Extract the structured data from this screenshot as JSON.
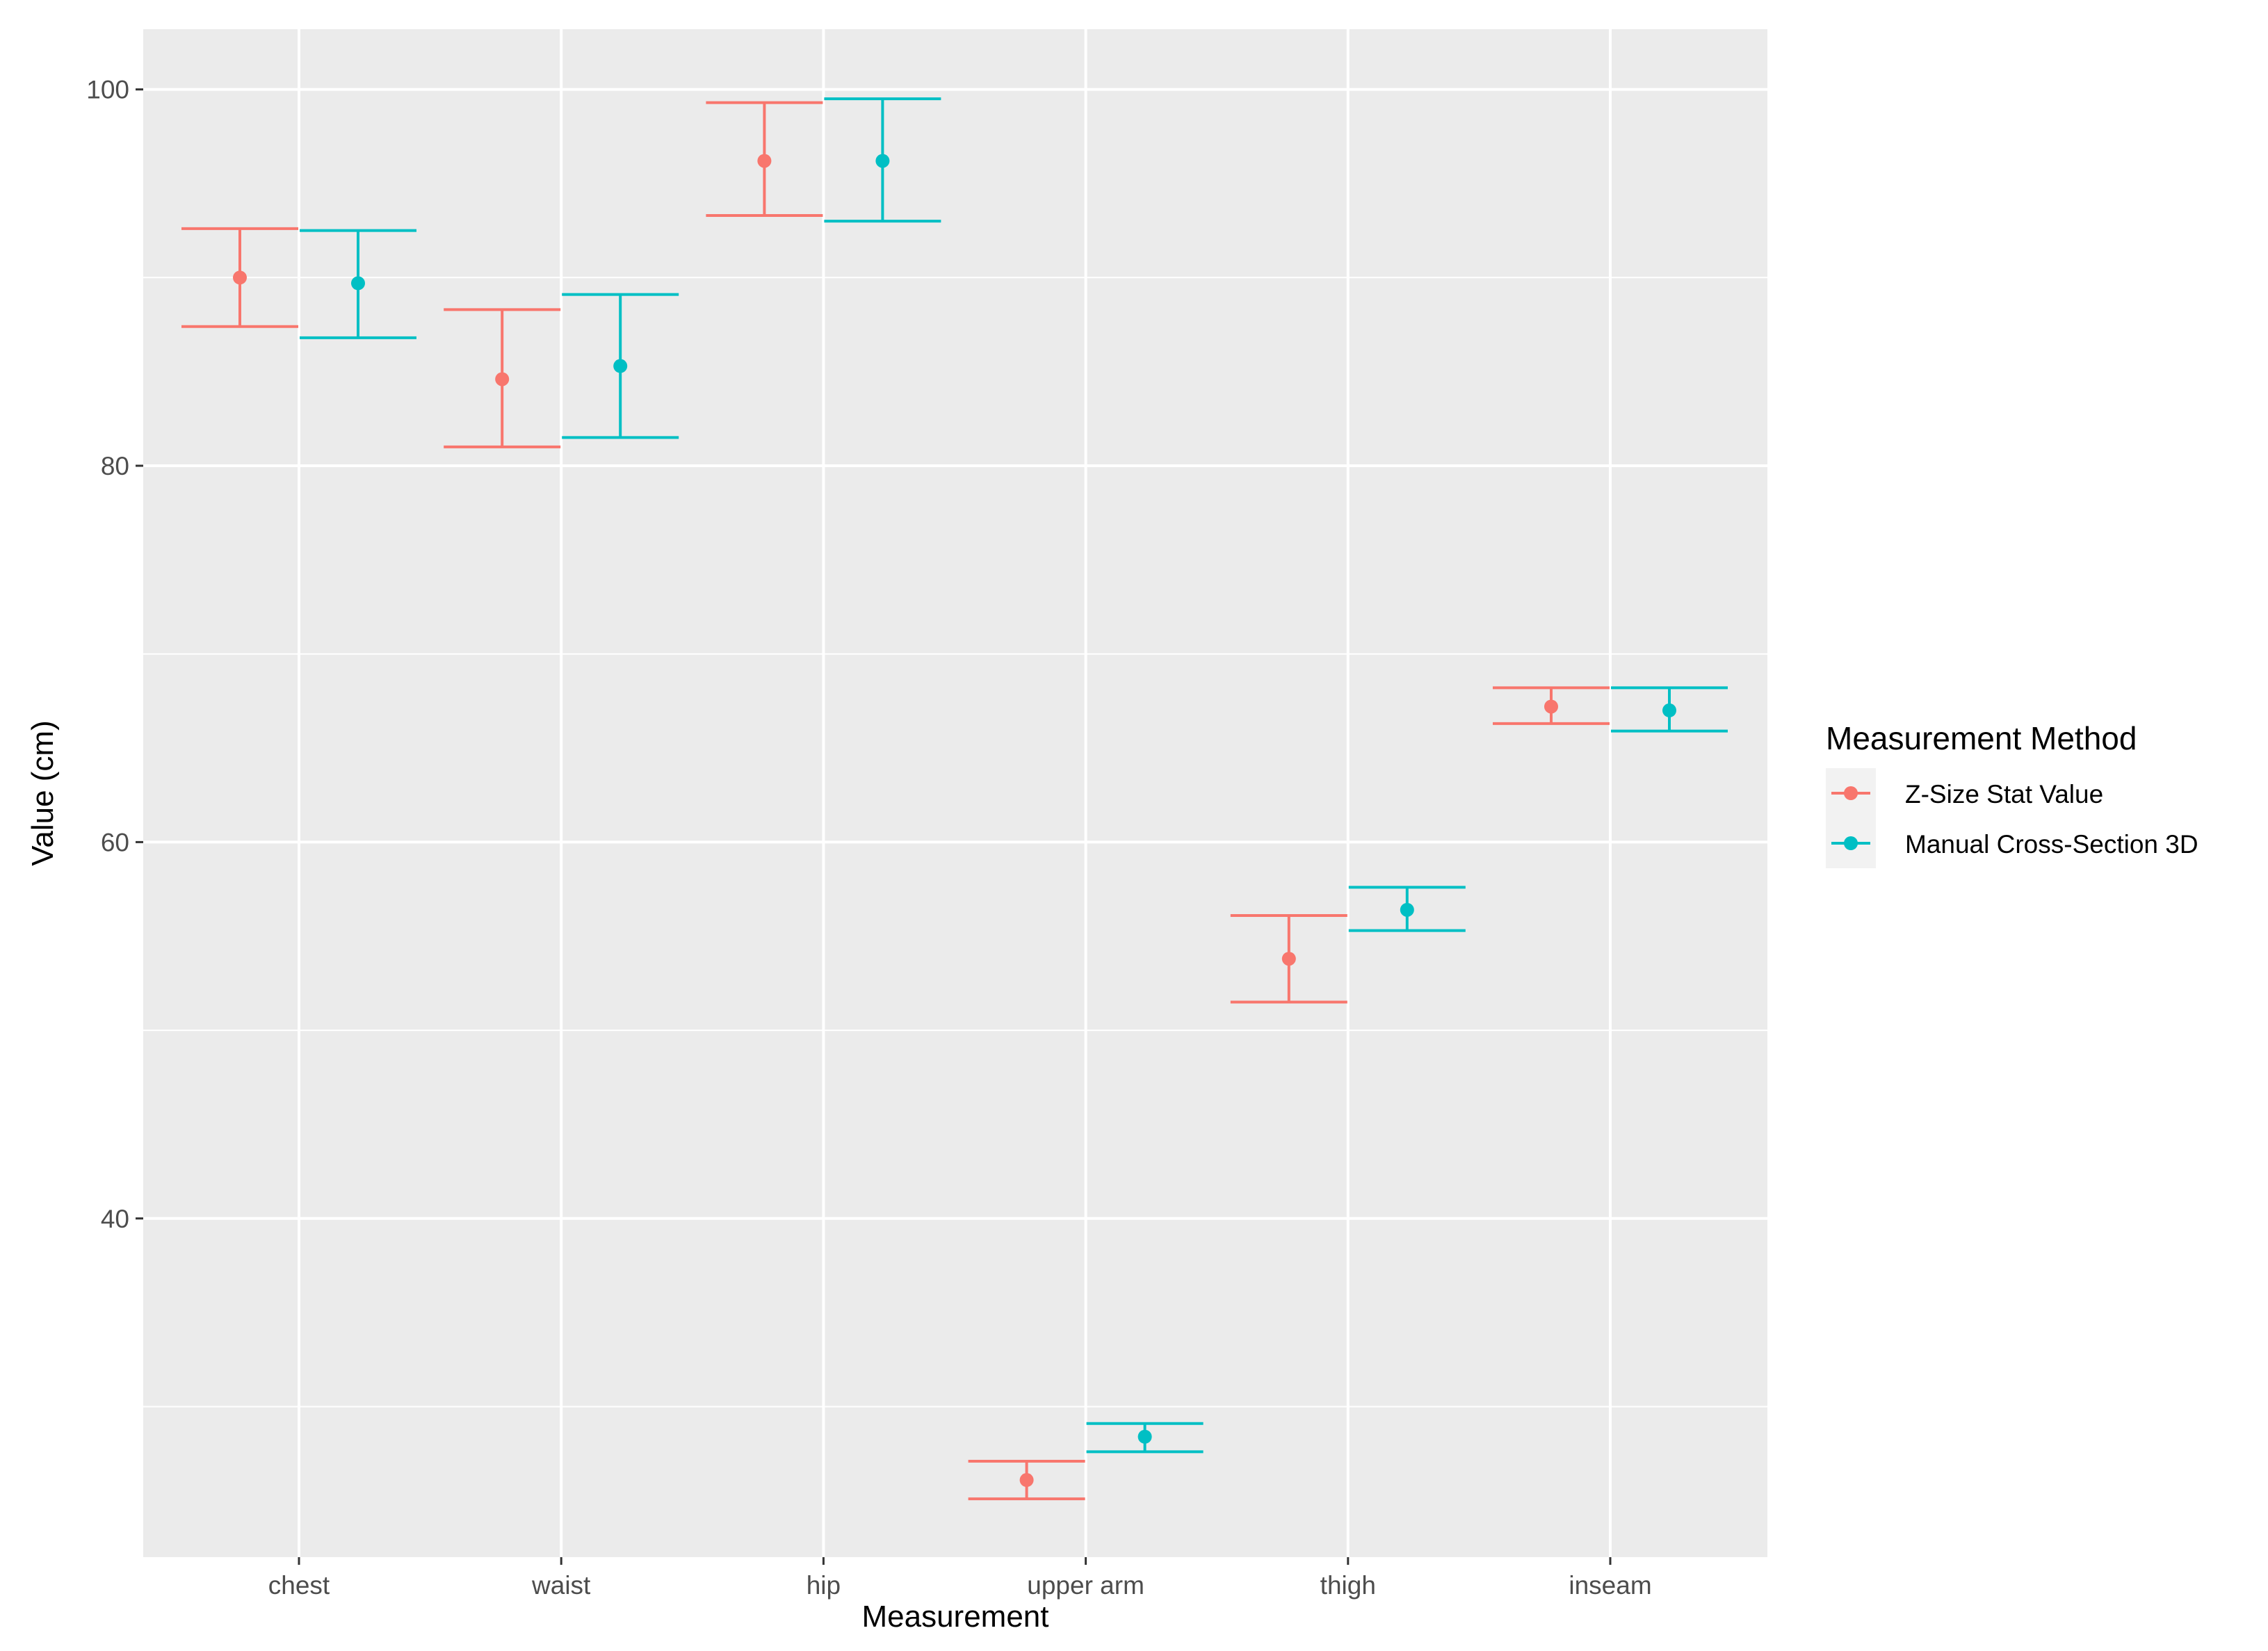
{
  "chart_data": {
    "type": "errorbar",
    "title": "",
    "xlabel": "Measurement",
    "ylabel": "Value (cm)",
    "categories": [
      "chest",
      "waist",
      "hip",
      "upper arm",
      "thigh",
      "inseam"
    ],
    "ylim": [
      22,
      103.2
    ],
    "yticks": [
      40,
      60,
      80,
      100
    ],
    "grid": true,
    "legend": {
      "title": "Measurement Method",
      "position": "right"
    },
    "series": [
      {
        "name": "Z-Size Stat Value",
        "color": "#F8766D",
        "values": [
          90.0,
          84.6,
          96.2,
          26.1,
          53.8,
          67.2
        ],
        "lower": [
          87.4,
          81.0,
          93.3,
          25.1,
          51.5,
          66.3
        ],
        "upper": [
          92.6,
          88.3,
          99.3,
          27.1,
          56.1,
          68.2
        ]
      },
      {
        "name": "Manual Cross-Section 3D",
        "color": "#00BFC4",
        "values": [
          89.7,
          85.3,
          96.2,
          28.4,
          56.4,
          67.0
        ],
        "lower": [
          86.8,
          81.5,
          93.0,
          27.6,
          55.3,
          65.9
        ],
        "upper": [
          92.5,
          89.1,
          99.5,
          29.1,
          57.6,
          68.2
        ]
      }
    ]
  }
}
